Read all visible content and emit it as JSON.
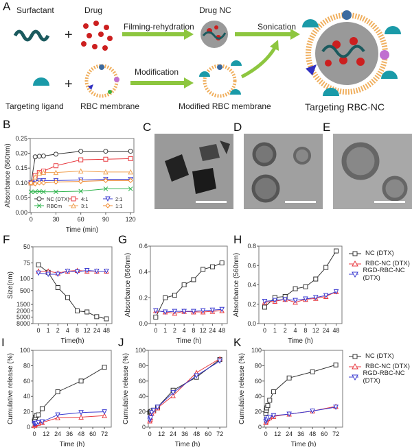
{
  "colors": {
    "nc": "#333333",
    "red": "#e8393f",
    "blue": "#3a3ad0",
    "orange": "#f0a050",
    "orange2": "#f08a30",
    "green": "#2bb34a",
    "arrow": "#8dc63f",
    "teal": "#1a9aa8",
    "drug": "#cc1f1f"
  },
  "panels": {
    "A": "A",
    "B": "B",
    "C": "C",
    "D": "D",
    "E": "E",
    "F": "F",
    "G": "G",
    "H": "H",
    "I": "I",
    "J": "J",
    "K": "K"
  },
  "schematic": {
    "surfactant": "Surfactant",
    "drug": "Drug",
    "drug_nc": "Drug NC",
    "filming": "Filming-rehydration",
    "sonication": "Sonication",
    "modification": "Modification",
    "targeting_ligand": "Targeting ligand",
    "rbc_membrane": "RBC membrane",
    "modified_rbc": "Modified RBC membrane",
    "targeting_rbc_nc": "Targeting RBC-NC",
    "plus": "+"
  },
  "legend_right": [
    "NC (DTX)",
    "RBC-NC (DTX)",
    "RGD-RBC-NC (DTX)"
  ],
  "chart_data": [
    {
      "id": "B",
      "type": "line",
      "xlabel": "Time (min)",
      "ylabel": "Absorbance (560nm)",
      "xlim": [
        0,
        120
      ],
      "ylim": [
        0,
        0.25
      ],
      "xticks": [
        0,
        30,
        60,
        90,
        120
      ],
      "yticks": [
        0,
        0.05,
        0.1,
        0.15,
        0.2,
        0.25
      ],
      "ytick_labels": [
        "0.00",
        "0.05",
        "0.10",
        "0.15",
        "0.20",
        "0.25"
      ],
      "x": [
        0,
        5,
        10,
        15,
        30,
        60,
        90,
        120
      ],
      "legend": "in-plot bottom",
      "series": [
        {
          "name": "NC (DTX)",
          "color": "nc",
          "marker": "circle",
          "values": [
            0.1,
            0.188,
            0.19,
            0.191,
            0.197,
            0.207,
            0.207,
            0.207
          ]
        },
        {
          "name": "4:1",
          "color": "red",
          "marker": "square",
          "values": [
            0.1,
            0.125,
            0.135,
            0.14,
            0.158,
            0.178,
            0.18,
            0.182
          ]
        },
        {
          "name": "2:1",
          "color": "blue",
          "marker": "tri-down",
          "values": [
            0.1,
            0.108,
            0.107,
            0.108,
            0.108,
            0.11,
            0.112,
            0.112
          ]
        },
        {
          "name": "RBCm",
          "color": "green",
          "marker": "x",
          "values": [
            0.07,
            0.07,
            0.071,
            0.07,
            0.07,
            0.072,
            0.08,
            0.08
          ]
        },
        {
          "name": "3:1",
          "color": "orange",
          "marker": "tri-up",
          "values": [
            0.1,
            0.12,
            0.133,
            0.135,
            0.135,
            0.14,
            0.137,
            0.137
          ]
        },
        {
          "name": "1:1",
          "color": "orange2",
          "marker": "diamond",
          "values": [
            0.1,
            0.097,
            0.1,
            0.1,
            0.103,
            0.105,
            0.108,
            0.108
          ]
        }
      ]
    },
    {
      "id": "F",
      "type": "line",
      "xlabel": "Time(h)",
      "ylabel": "Size(nm)",
      "categories": [
        "0",
        "1",
        "2",
        "4",
        "8",
        "12",
        "24",
        "48"
      ],
      "yticks": [
        50,
        75,
        100,
        500,
        1500,
        2000,
        5000,
        8000
      ],
      "ytick_labels": [
        "50",
        "75",
        "100",
        "500",
        "1500",
        "2000",
        "5000",
        "8000"
      ],
      "yscale": "segmented",
      "series": [
        {
          "name": "NC (DTX)",
          "color": "nc",
          "marker": "square",
          "values": [
            78,
            90,
            400,
            1000,
            2000,
            2500,
            4800,
            5800
          ]
        },
        {
          "name": "RBC-NC (DTX)",
          "color": "red",
          "marker": "tri-up",
          "values": [
            88,
            88,
            91,
            88,
            87,
            88,
            88,
            88
          ]
        },
        {
          "name": "RGD-RBC-NC (DTX)",
          "color": "blue",
          "marker": "tri-down",
          "values": [
            91,
            93,
            93,
            88,
            89,
            87,
            88,
            88
          ]
        }
      ]
    },
    {
      "id": "G",
      "type": "line",
      "xlabel": "Time (h)",
      "ylabel": "Absorbance (560nm)",
      "categories": [
        "0",
        "1",
        "2",
        "4",
        "8",
        "12",
        "24",
        "48"
      ],
      "ylim": [
        0,
        0.6
      ],
      "yticks": [
        0,
        0.2,
        0.4,
        0.6
      ],
      "ytick_labels": [
        "0.0",
        "0.2",
        "0.4",
        "0.6"
      ],
      "series": [
        {
          "name": "NC (DTX)",
          "color": "nc",
          "marker": "square",
          "values": [
            0.05,
            0.2,
            0.22,
            0.3,
            0.34,
            0.42,
            0.44,
            0.47
          ]
        },
        {
          "name": "RBC-NC (DTX)",
          "color": "red",
          "marker": "tri-up",
          "values": [
            0.1,
            0.09,
            0.08,
            0.095,
            0.09,
            0.09,
            0.095,
            0.1
          ]
        },
        {
          "name": "RGD-RBC-NC (DTX)",
          "color": "blue",
          "marker": "tri-down",
          "values": [
            0.1,
            0.09,
            0.095,
            0.095,
            0.095,
            0.1,
            0.105,
            0.11
          ]
        }
      ]
    },
    {
      "id": "H",
      "type": "line",
      "xlabel": "Time (h)",
      "ylabel": "Absorbance (560nm)",
      "categories": [
        "0",
        "1",
        "2",
        "4",
        "8",
        "12",
        "24",
        "48"
      ],
      "ylim": [
        0,
        0.8
      ],
      "yticks": [
        0,
        0.2,
        0.4,
        0.6,
        0.8
      ],
      "ytick_labels": [
        "0.0",
        "0.2",
        "0.4",
        "0.6",
        "0.8"
      ],
      "legend": "right",
      "series": [
        {
          "name": "NC (DTX)",
          "color": "nc",
          "marker": "square",
          "values": [
            0.17,
            0.27,
            0.28,
            0.36,
            0.38,
            0.46,
            0.58,
            0.75
          ]
        },
        {
          "name": "RBC-NC (DTX)",
          "color": "red",
          "marker": "tri-up",
          "values": [
            0.22,
            0.23,
            0.25,
            0.22,
            0.25,
            0.26,
            0.28,
            0.33
          ]
        },
        {
          "name": "RGD-RBC-NC (DTX)",
          "color": "blue",
          "marker": "tri-down",
          "values": [
            0.23,
            0.24,
            0.25,
            0.24,
            0.255,
            0.27,
            0.29,
            0.33
          ]
        }
      ]
    },
    {
      "id": "I",
      "type": "line",
      "xlabel": "Time (h)",
      "ylabel": "Cumulative release (%)",
      "xlim": [
        0,
        72
      ],
      "ylim": [
        0,
        100
      ],
      "xticks": [
        0,
        12,
        24,
        36,
        48,
        60,
        72
      ],
      "yticks": [
        0,
        20,
        40,
        60,
        80,
        100
      ],
      "ytick_labels": [
        "0",
        "20",
        "40",
        "60",
        "80",
        "100"
      ],
      "x": [
        0,
        0.5,
        1,
        2,
        4,
        8,
        24,
        48,
        72
      ],
      "series": [
        {
          "name": "NC (DTX)",
          "color": "nc",
          "marker": "square",
          "values": [
            8,
            10,
            13,
            15,
            16,
            24,
            46,
            60,
            78
          ]
        },
        {
          "name": "RBC-NC (DTX)",
          "color": "red",
          "marker": "tri-up",
          "values": [
            2,
            3,
            4,
            5,
            5,
            6,
            12,
            13,
            15
          ]
        },
        {
          "name": "RGD-RBC-NC (DTX)",
          "color": "blue",
          "marker": "tri-down",
          "values": [
            4,
            5,
            5,
            5,
            6,
            7,
            16,
            19,
            20
          ]
        }
      ]
    },
    {
      "id": "J",
      "type": "line",
      "xlabel": "Time (h)",
      "ylabel": "Cumulative release (%)",
      "xlim": [
        0,
        72
      ],
      "ylim": [
        0,
        100
      ],
      "xticks": [
        0,
        12,
        24,
        36,
        48,
        60,
        72
      ],
      "yticks": [
        0,
        20,
        40,
        60,
        80,
        100
      ],
      "ytick_labels": [
        "0",
        "20",
        "40",
        "60",
        "80",
        "100"
      ],
      "x": [
        0,
        0.5,
        1,
        2,
        4,
        8,
        24,
        48,
        72
      ],
      "series": [
        {
          "name": "NC (DTX)",
          "color": "nc",
          "marker": "square",
          "values": [
            19,
            20,
            20,
            21,
            22,
            26,
            48,
            65,
            88
          ]
        },
        {
          "name": "RBC-NC (DTX)",
          "color": "red",
          "marker": "tri-up",
          "values": [
            8,
            10,
            12,
            18,
            21,
            25,
            41,
            71,
            89
          ]
        },
        {
          "name": "RGD-RBC-NC (DTX)",
          "color": "blue",
          "marker": "tri-down",
          "values": [
            9,
            11,
            12,
            19,
            22,
            26,
            45,
            67,
            86
          ]
        }
      ]
    },
    {
      "id": "K",
      "type": "line",
      "xlabel": "Time (h)",
      "ylabel": "Cumulative release (%)",
      "xlim": [
        0,
        72
      ],
      "ylim": [
        0,
        100
      ],
      "xticks": [
        0,
        12,
        24,
        36,
        48,
        60,
        72
      ],
      "yticks": [
        0,
        20,
        40,
        60,
        80,
        100
      ],
      "ytick_labels": [
        "0",
        "20",
        "40",
        "60",
        "80",
        "100"
      ],
      "x": [
        0,
        0.5,
        1,
        2,
        4,
        8,
        24,
        48,
        72
      ],
      "legend": "right",
      "series": [
        {
          "name": "NC (DTX)",
          "color": "nc",
          "marker": "square",
          "values": [
            18,
            22,
            25,
            28,
            35,
            46,
            64,
            72,
            81
          ]
        },
        {
          "name": "RBC-NC (DTX)",
          "color": "red",
          "marker": "tri-up",
          "values": [
            6,
            8,
            10,
            11,
            12,
            14,
            17,
            21,
            27
          ]
        },
        {
          "name": "RGD-RBC-NC (DTX)",
          "color": "blue",
          "marker": "tri-down",
          "values": [
            7,
            9,
            10,
            12,
            13,
            15,
            17,
            21,
            26
          ]
        }
      ]
    }
  ]
}
